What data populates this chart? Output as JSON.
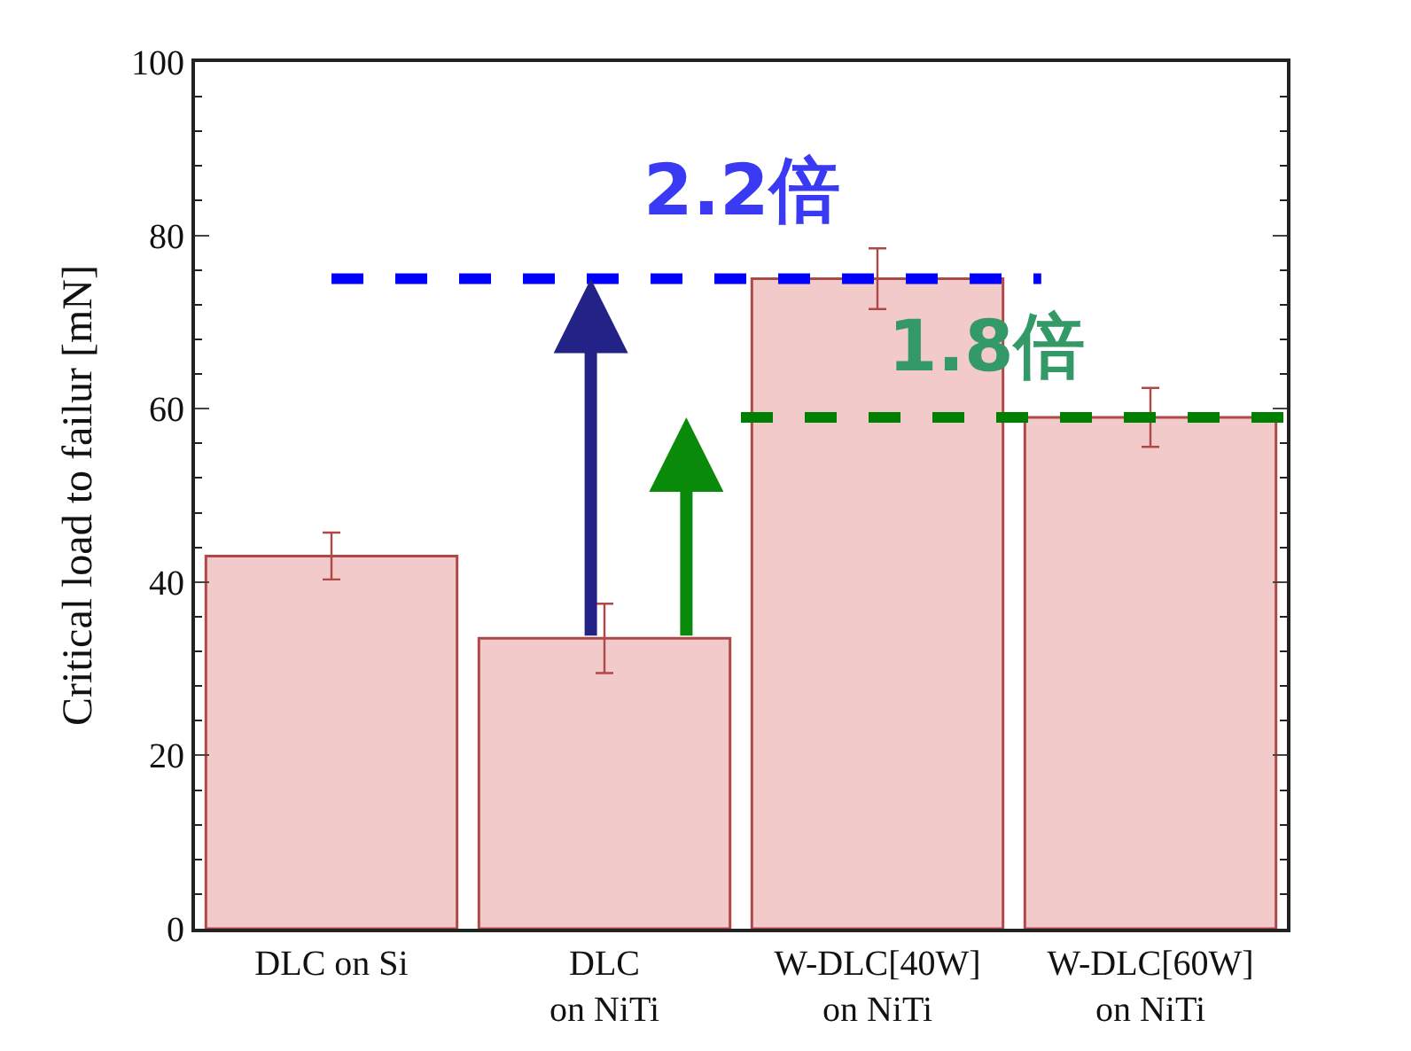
{
  "chart_data": {
    "type": "bar",
    "ylabel": "Critical load to failur [mN]",
    "categories": [
      "DLC on Si",
      "DLC\non NiTi",
      "W-DLC[40W]\non NiTi",
      "W-DLC[60W]\non NiTi"
    ],
    "values": [
      43,
      33.5,
      75,
      59
    ],
    "errors": [
      2.7,
      4,
      3.5,
      3.4
    ],
    "color": "#f2caca",
    "ylim": [
      0,
      100
    ],
    "yticks": [
      0,
      20,
      40,
      60,
      80,
      100
    ],
    "legend": false,
    "ref_lines": [
      {
        "axis": "y",
        "value": 75,
        "label": "2.2倍",
        "color": "#0000ff",
        "line_style": "dashed"
      },
      {
        "axis": "y",
        "value": 59,
        "label": "1.8倍",
        "color": "#008000",
        "line_style": "dashed"
      }
    ]
  }
}
